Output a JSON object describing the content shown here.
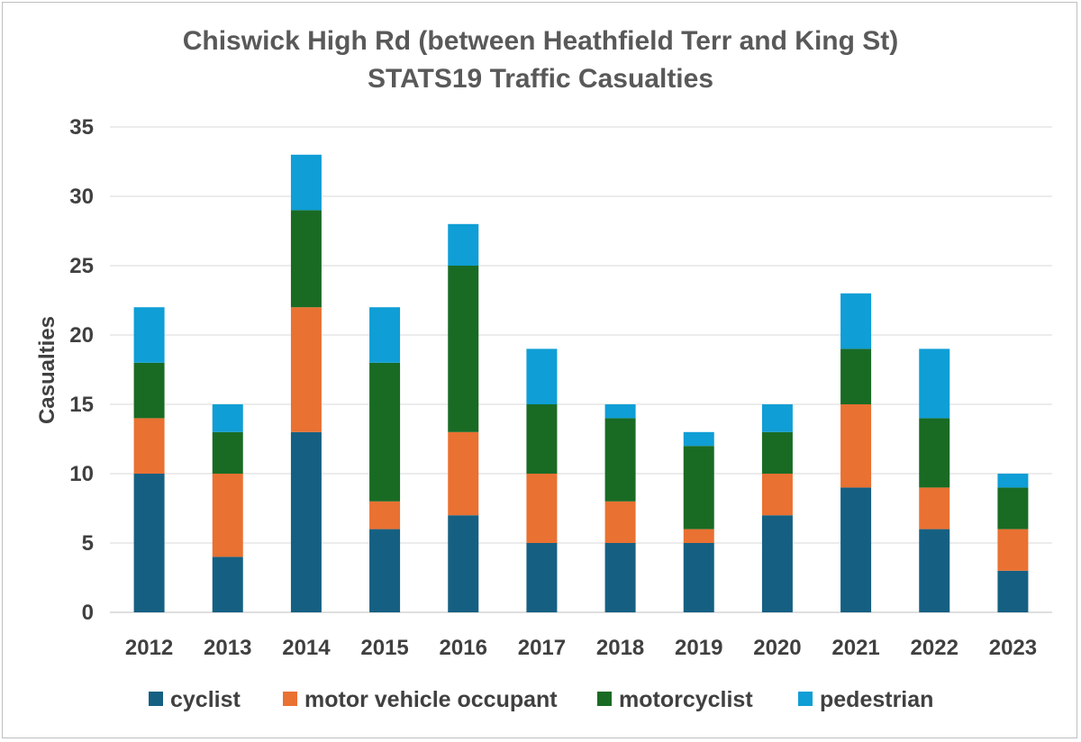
{
  "chart_data": {
    "type": "bar",
    "stacked": true,
    "title": "Chiswick High Rd (between Heathfield Terr and King St)",
    "subtitle": "STATS19 Traffic Casualties",
    "xlabel": "",
    "ylabel": "Casualties",
    "ylim": [
      0,
      35
    ],
    "yticks": [
      0,
      5,
      10,
      15,
      20,
      25,
      30,
      35
    ],
    "grid": true,
    "legend_position": "bottom",
    "categories": [
      "2012",
      "2013",
      "2014",
      "2015",
      "2016",
      "2017",
      "2018",
      "2019",
      "2020",
      "2021",
      "2022",
      "2023"
    ],
    "series": [
      {
        "name": "cyclist",
        "color": "#156082",
        "values": [
          10,
          4,
          13,
          6,
          7,
          5,
          5,
          5,
          7,
          9,
          6,
          3
        ]
      },
      {
        "name": "motor vehicle occupant",
        "color": "#e97132",
        "values": [
          4,
          6,
          9,
          2,
          6,
          5,
          3,
          1,
          3,
          6,
          3,
          3
        ]
      },
      {
        "name": "motorcyclist",
        "color": "#196b24",
        "values": [
          4,
          3,
          7,
          10,
          12,
          5,
          6,
          6,
          3,
          4,
          5,
          3
        ]
      },
      {
        "name": "pedestrian",
        "color": "#0f9ed5",
        "values": [
          4,
          2,
          4,
          4,
          3,
          4,
          1,
          1,
          2,
          4,
          5,
          1
        ]
      }
    ]
  }
}
